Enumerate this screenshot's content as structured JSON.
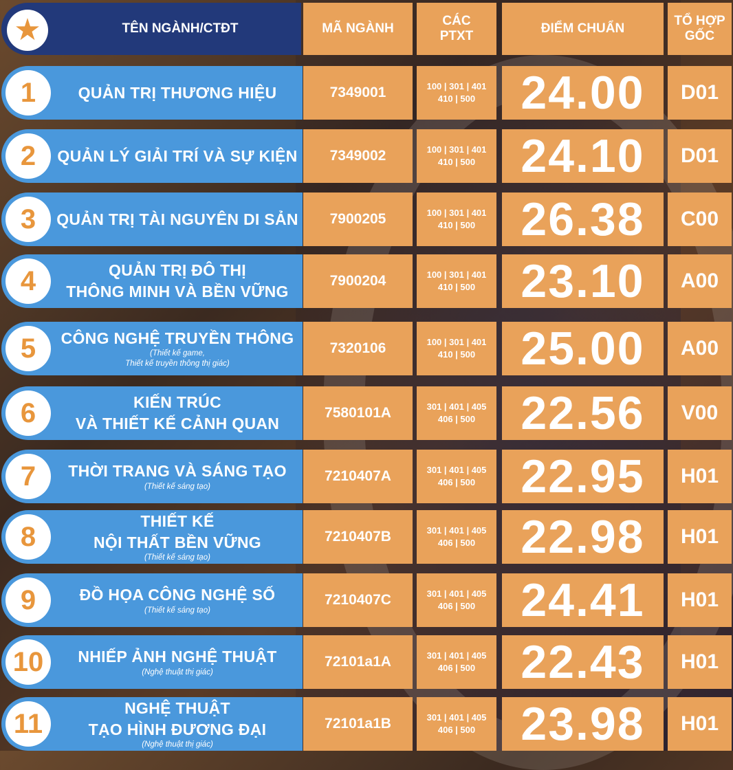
{
  "header": {
    "name": "TÊN NGÀNH/CTĐT",
    "code": "MÃ NGÀNH",
    "ptxt_line1": "CÁC",
    "ptxt_line2": "PTXT",
    "score": "ĐIỂM CHUẨN",
    "combo_line1": "TỔ HỢP",
    "combo_line2": "GỐC",
    "star_icon": "star-icon"
  },
  "colors": {
    "header_blue": "#22397a",
    "row_blue": "#4a98dc",
    "orange": "#e9a25a",
    "number_orange": "#e8963c"
  },
  "rows": [
    {
      "num": "1",
      "name1": "QUẢN TRỊ THƯƠNG HIỆU",
      "name2": "",
      "sub1": "",
      "sub2": "",
      "code": "7349001",
      "ptxt1": "100 | 301 | 401",
      "ptxt2": "410 | 500",
      "score": "24.00",
      "combo": "D01"
    },
    {
      "num": "2",
      "name1": "QUẢN LÝ GIẢI TRÍ VÀ SỰ KIỆN",
      "name2": "",
      "sub1": "",
      "sub2": "",
      "code": "7349002",
      "ptxt1": "100 | 301 | 401",
      "ptxt2": "410 | 500",
      "score": "24.10",
      "combo": "D01"
    },
    {
      "num": "3",
      "name1": "QUẢN TRỊ TÀI NGUYÊN DI SẢN",
      "name2": "",
      "sub1": "",
      "sub2": "",
      "code": "7900205",
      "ptxt1": "100 | 301 | 401",
      "ptxt2": "410 | 500",
      "score": "26.38",
      "combo": "C00"
    },
    {
      "num": "4",
      "name1": "QUẢN TRỊ ĐÔ THỊ",
      "name2": "THÔNG MINH VÀ BỀN VỮNG",
      "sub1": "",
      "sub2": "",
      "code": "7900204",
      "ptxt1": "100 | 301 | 401",
      "ptxt2": "410 | 500",
      "score": "23.10",
      "combo": "A00"
    },
    {
      "num": "5",
      "name1": "CÔNG NGHỆ TRUYỀN THÔNG",
      "name2": "",
      "sub1": "(Thiết kế game,",
      "sub2": "Thiết kế truyền thông thị giác)",
      "code": "7320106",
      "ptxt1": "100 | 301 | 401",
      "ptxt2": "410 | 500",
      "score": "25.00",
      "combo": "A00"
    },
    {
      "num": "6",
      "name1": "KIẾN TRÚC",
      "name2": "VÀ THIẾT KẾ CẢNH QUAN",
      "sub1": "",
      "sub2": "",
      "code": "7580101A",
      "ptxt1": "301 | 401 | 405",
      "ptxt2": "406 | 500",
      "score": "22.56",
      "combo": "V00"
    },
    {
      "num": "7",
      "name1": "THỜI TRANG VÀ SÁNG TẠO",
      "name2": "",
      "sub1": "(Thiết kế sáng tạo)",
      "sub2": "",
      "code": "7210407A",
      "ptxt1": "301 | 401 | 405",
      "ptxt2": "406 | 500",
      "score": "22.95",
      "combo": "H01"
    },
    {
      "num": "8",
      "name1": "THIẾT KẾ",
      "name2": "NỘI THẤT BỀN VỮNG",
      "sub1": "(Thiết kế sáng tạo)",
      "sub2": "",
      "code": "7210407B",
      "ptxt1": "301 | 401 | 405",
      "ptxt2": "406 | 500",
      "score": "22.98",
      "combo": "H01"
    },
    {
      "num": "9",
      "name1": "ĐỒ HỌA CÔNG NGHỆ SỐ",
      "name2": "",
      "sub1": "(Thiết kế sáng tạo)",
      "sub2": "",
      "code": "7210407C",
      "ptxt1": "301 | 401 | 405",
      "ptxt2": "406 | 500",
      "score": "24.41",
      "combo": "H01"
    },
    {
      "num": "10",
      "name1": "NHIẾP ẢNH NGHỆ THUẬT",
      "name2": "",
      "sub1": "(Nghệ thuật thị giác)",
      "sub2": "",
      "code": "72101a1A",
      "ptxt1": "301 | 401 | 405",
      "ptxt2": "406 | 500",
      "score": "22.43",
      "combo": "H01"
    },
    {
      "num": "11",
      "name1": "NGHỆ THUẬT",
      "name2": "TẠO HÌNH ĐƯƠNG ĐẠI",
      "sub1": "(Nghệ thuật thị giác)",
      "sub2": "",
      "code": "72101a1B",
      "ptxt1": "301 | 401 | 405",
      "ptxt2": "406 | 500",
      "score": "23.98",
      "combo": "H01"
    }
  ]
}
